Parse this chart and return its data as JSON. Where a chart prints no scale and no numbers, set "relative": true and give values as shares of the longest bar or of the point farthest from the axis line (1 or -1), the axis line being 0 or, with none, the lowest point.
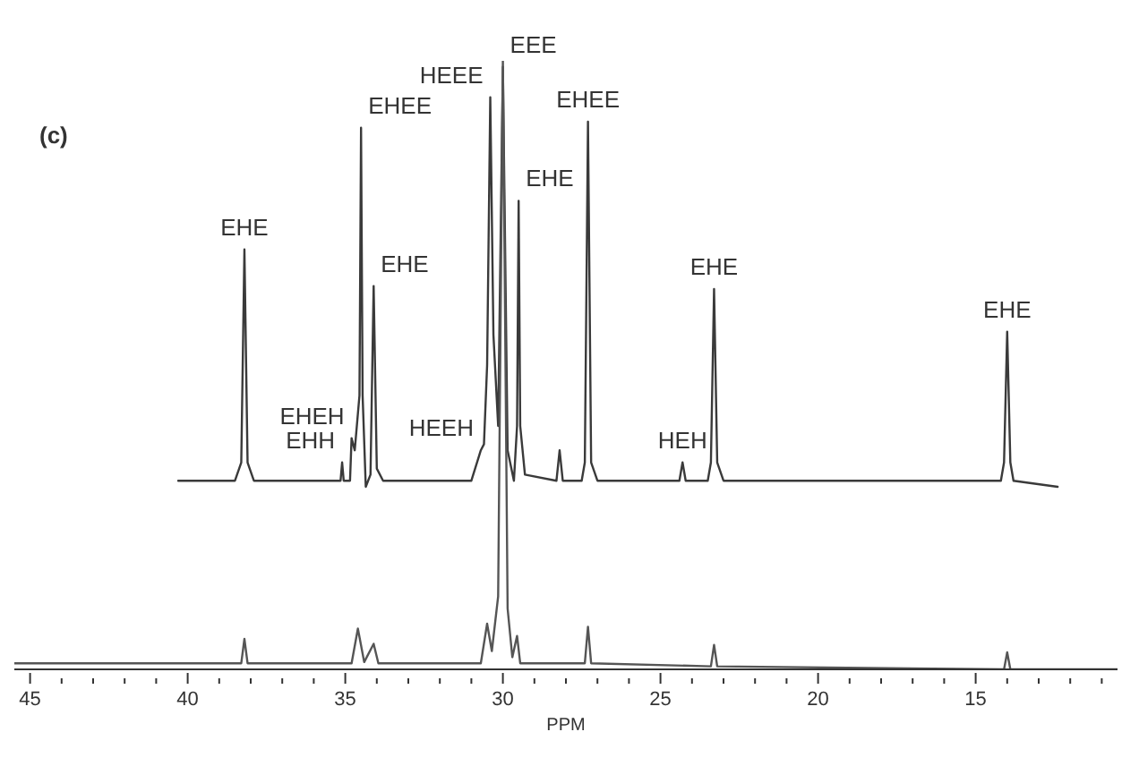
{
  "chart_data": {
    "type": "line",
    "relative": true,
    "xlabel": "PPM",
    "xlim": [
      45.5,
      10.5
    ],
    "xticks": [
      45,
      {
        "value": 44,
        "label": null
      },
      {
        "value": 43,
        "label": null
      },
      {
        "value": 42,
        "label": null
      },
      {
        "value": 41,
        "label": null
      },
      40,
      {
        "value": 39,
        "label": null
      },
      {
        "value": 38,
        "label": null
      },
      {
        "value": 37,
        "label": null
      },
      {
        "value": 36,
        "label": null
      },
      35,
      {
        "value": 34,
        "label": null
      },
      {
        "value": 33,
        "label": null
      },
      {
        "value": 32,
        "label": null
      },
      {
        "value": 31,
        "label": null
      },
      30,
      {
        "value": 29,
        "label": null
      },
      {
        "value": 28,
        "label": null
      },
      {
        "value": 27,
        "label": null
      },
      {
        "value": 26,
        "label": null
      },
      25,
      {
        "value": 24,
        "label": null
      },
      {
        "value": 23,
        "label": null
      },
      {
        "value": 22,
        "label": null
      },
      {
        "value": 21,
        "label": null
      },
      20,
      {
        "value": 19,
        "label": null
      },
      {
        "value": 18,
        "label": null
      },
      {
        "value": 17,
        "label": null
      },
      {
        "value": 16,
        "label": null
      },
      15,
      {
        "value": 14,
        "label": null
      },
      {
        "value": 13,
        "label": null
      },
      {
        "value": 12,
        "label": null
      },
      {
        "value": 11,
        "label": null
      }
    ],
    "tick_labels": "x",
    "grid": false,
    "legend": false,
    "series": [
      {
        "color": "#3a3a3a",
        "x": [
          40.3,
          38.5,
          38.3,
          38.2,
          38.1,
          37.9,
          36.0,
          35.15,
          35.1,
          35.05,
          34.85,
          34.8,
          34.7,
          34.55,
          34.5,
          34.45,
          34.35,
          34.2,
          34.1,
          34.0,
          33.8,
          31.0,
          30.7,
          30.6,
          30.5,
          30.4,
          30.3,
          30.15,
          30.0,
          29.85,
          29.65,
          29.55,
          29.5,
          29.45,
          29.3,
          28.3,
          28.2,
          28.1,
          27.5,
          27.4,
          27.3,
          27.2,
          27.0,
          24.4,
          24.3,
          24.2,
          23.5,
          23.4,
          23.3,
          23.2,
          23.0,
          14.2,
          14.1,
          14.0,
          13.9,
          13.8,
          12.4
        ],
        "values": [
          0.31,
          0.31,
          0.34,
          0.69,
          0.34,
          0.31,
          0.31,
          0.31,
          0.34,
          0.31,
          0.31,
          0.38,
          0.36,
          0.45,
          0.89,
          0.45,
          0.3,
          0.32,
          0.63,
          0.33,
          0.31,
          0.31,
          0.36,
          0.37,
          0.5,
          0.94,
          0.55,
          0.4,
          0.99,
          0.36,
          0.31,
          0.4,
          0.77,
          0.4,
          0.32,
          0.31,
          0.36,
          0.31,
          0.31,
          0.34,
          0.9,
          0.34,
          0.31,
          0.31,
          0.34,
          0.31,
          0.31,
          0.34,
          0.625,
          0.34,
          0.31,
          0.31,
          0.34,
          0.555,
          0.34,
          0.31,
          0.3
        ]
      },
      {
        "color": "#555555",
        "x": [
          45.5,
          38.3,
          38.2,
          38.1,
          34.8,
          34.6,
          34.4,
          34.1,
          33.95,
          30.7,
          30.5,
          30.35,
          30.15,
          30.0,
          29.85,
          29.7,
          29.55,
          29.45,
          27.4,
          27.3,
          27.2,
          23.4,
          23.3,
          23.2,
          14.1,
          14.0,
          13.9,
          10.5
        ],
        "values": [
          0.01,
          0.01,
          0.05,
          0.01,
          0.01,
          0.067,
          0.012,
          0.042,
          0.01,
          0.01,
          0.075,
          0.03,
          0.12,
          1,
          0.1,
          0.02,
          0.055,
          0.01,
          0.01,
          0.07,
          0.01,
          0.005,
          0.04,
          0.005,
          0,
          0.028,
          0,
          0
        ]
      }
    ],
    "annotations": [
      "(c)",
      {
        "text": "EHE",
        "x": 38.2,
        "y": 0.69
      },
      {
        "text": "EHEH",
        "x": 34.8,
        "y": 0.38
      },
      {
        "text": "EHH",
        "x": 35.1,
        "y": 0.34
      },
      {
        "text": "EHEE",
        "x": 34.5,
        "y": 0.89
      },
      {
        "text": "EHE",
        "x": 34.1,
        "y": 0.63
      },
      {
        "text": "HEEH",
        "x": 30.7,
        "y": 0.36
      },
      {
        "text": "HEEE",
        "x": 30.4,
        "y": 0.94
      },
      {
        "text": "EEE",
        "x": 30.0,
        "y": 0.99
      },
      {
        "text": "EHE",
        "x": 29.5,
        "y": 0.77
      },
      {
        "text": "EHEE",
        "x": 27.3,
        "y": 0.9
      },
      {
        "text": "HEH",
        "x": 24.3,
        "y": 0.34
      },
      {
        "text": "EHE",
        "x": 23.3,
        "y": 0.625
      },
      {
        "text": "EHE",
        "x": 14.0,
        "y": 0.555
      }
    ]
  }
}
